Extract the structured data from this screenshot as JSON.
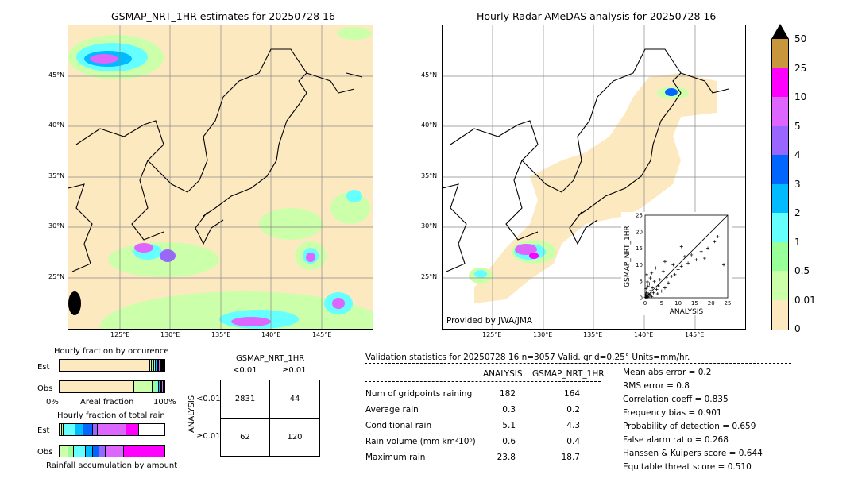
{
  "left_map": {
    "title": "GSMAP_NRT_1HR estimates for 20250728 16",
    "lat_labels": [
      "45°N",
      "40°N",
      "35°N",
      "30°N",
      "25°N"
    ],
    "lon_labels": [
      "125°E",
      "130°E",
      "135°E",
      "140°E",
      "145°E"
    ]
  },
  "right_map": {
    "title": "Hourly Radar-AMeDAS analysis for 20250728 16",
    "lat_labels": [
      "45°N",
      "40°N",
      "35°N",
      "30°N",
      "25°N"
    ],
    "lon_labels": [
      "125°E",
      "130°E",
      "135°E",
      "140°E",
      "145°E"
    ],
    "credit": "Provided by JWA/JMA"
  },
  "colorbar": {
    "labels": [
      "50",
      "25",
      "10",
      "5",
      "4",
      "3",
      "2",
      "1",
      "0.5",
      "0.01",
      "0"
    ],
    "colors": [
      "#c8963c",
      "#ff00ff",
      "#dd66ff",
      "#9966ff",
      "#0066ff",
      "#00bbff",
      "#66ffff",
      "#99ff99",
      "#ccffaa",
      "#fde9c0"
    ],
    "arrow_color": "#000000"
  },
  "chart_data": [
    {
      "type": "scatter",
      "title": "",
      "xlabel": "ANALYSIS",
      "ylabel": "GSMAP_NRT_1HR",
      "xlim": [
        0,
        25
      ],
      "ylim": [
        0,
        25
      ],
      "ticks": [
        "0",
        "5",
        "10",
        "15",
        "20",
        "25"
      ],
      "points": [
        [
          0.1,
          0.2
        ],
        [
          0.3,
          0.1
        ],
        [
          0.5,
          0.6
        ],
        [
          0.8,
          0.3
        ],
        [
          1.0,
          1.2
        ],
        [
          1.2,
          0.5
        ],
        [
          0.2,
          0.9
        ],
        [
          0.4,
          1.5
        ],
        [
          1.5,
          1.0
        ],
        [
          0.6,
          0.2
        ],
        [
          2.0,
          0.4
        ],
        [
          1.8,
          2.2
        ],
        [
          0.3,
          2.8
        ],
        [
          2.5,
          1.5
        ],
        [
          3.0,
          0.8
        ],
        [
          0.9,
          3.5
        ],
        [
          1.3,
          4.2
        ],
        [
          2.2,
          3.0
        ],
        [
          3.5,
          2.5
        ],
        [
          0.7,
          4.8
        ],
        [
          4.0,
          3.6
        ],
        [
          2.8,
          5.0
        ],
        [
          1.6,
          6.0
        ],
        [
          3.8,
          1.2
        ],
        [
          5.0,
          2.0
        ],
        [
          4.5,
          5.5
        ],
        [
          6.0,
          3.0
        ],
        [
          0.5,
          7.0
        ],
        [
          2.0,
          7.5
        ],
        [
          6.5,
          6.2
        ],
        [
          7.0,
          4.5
        ],
        [
          5.5,
          8.0
        ],
        [
          8.0,
          6.5
        ],
        [
          3.2,
          9.0
        ],
        [
          9.0,
          7.0
        ],
        [
          8.5,
          10.0
        ],
        [
          10.0,
          8.5
        ],
        [
          6.0,
          11.0
        ],
        [
          11.0,
          9.5
        ],
        [
          12.0,
          12.5
        ],
        [
          13.0,
          10.5
        ],
        [
          14.0,
          13.0
        ],
        [
          15.5,
          11.5
        ],
        [
          11.0,
          15.5
        ],
        [
          17.0,
          14.0
        ],
        [
          18.0,
          12.0
        ],
        [
          19.0,
          15.0
        ],
        [
          21.0,
          17.0
        ],
        [
          22.0,
          18.5
        ],
        [
          23.8,
          10.0
        ]
      ]
    },
    {
      "type": "bar",
      "title": "Hourly fraction by occurence",
      "categories": [
        "Est",
        "Obs"
      ],
      "xlabel": "Areal fraction",
      "x_ticks": [
        "0%",
        "100%"
      ],
      "series": [
        {
          "color": "#fde9c0",
          "values": [
            0.86,
            0.71
          ]
        },
        {
          "color": "#ccffaa",
          "values": [
            0.02,
            0.18
          ]
        },
        {
          "color": "#99ff99",
          "values": [
            0.02,
            0.04
          ]
        },
        {
          "color": "#66ffff",
          "values": [
            0.02,
            0.02
          ]
        },
        {
          "color": "#00bbff",
          "values": [
            0.01,
            0.01
          ]
        },
        {
          "color": "#0066ff",
          "values": [
            0.01,
            0.01
          ]
        },
        {
          "color": "#9966ff",
          "values": [
            0.01,
            0.01
          ]
        },
        {
          "color": "#dd66ff",
          "values": [
            0.01,
            0.01
          ]
        },
        {
          "color": "#ff00ff",
          "values": [
            0.01,
            0.01
          ]
        },
        {
          "color": "#000000",
          "values": [
            0.02,
            0.0
          ]
        }
      ]
    },
    {
      "type": "bar",
      "title": "Hourly fraction of total rain",
      "categories": [
        "Est",
        "Obs"
      ],
      "xlabel": "Rainfall accumulation by amount",
      "series": [
        {
          "color": "#ccffaa",
          "values": [
            0.02,
            0.08
          ]
        },
        {
          "color": "#99ff99",
          "values": [
            0.02,
            0.06
          ]
        },
        {
          "color": "#66ffff",
          "values": [
            0.11,
            0.11
          ]
        },
        {
          "color": "#00bbff",
          "values": [
            0.08,
            0.07
          ]
        },
        {
          "color": "#0066ff",
          "values": [
            0.09,
            0.06
          ]
        },
        {
          "color": "#9966ff",
          "values": [
            0.04,
            0.06
          ]
        },
        {
          "color": "#dd66ff",
          "values": [
            0.28,
            0.17
          ]
        },
        {
          "color": "#ff00ff",
          "values": [
            0.12,
            0.39
          ]
        }
      ]
    },
    {
      "type": "table",
      "title": "GSMAP_NRT_1HR",
      "col_headers": [
        "<0.01",
        "≥0.01"
      ],
      "row_headers": [
        "<0.01",
        "≥0.01"
      ],
      "side_label": "ANALYSIS",
      "cells": [
        [
          "2831",
          "44"
        ],
        [
          "62",
          "120"
        ]
      ]
    }
  ],
  "validation": {
    "header": "Validation statistics for 20250728 16  n=3057 Valid. grid=0.25° Units=mm/hr.",
    "col_analysis": "ANALYSIS",
    "col_gsmap": "GSMAP_NRT_1HR",
    "rows": [
      {
        "label": "Num of gridpoints raining",
        "analysis": "182",
        "gsmap": "164"
      },
      {
        "label": "Average rain",
        "analysis": "0.3",
        "gsmap": "0.2"
      },
      {
        "label": "Conditional rain",
        "analysis": "5.1",
        "gsmap": "4.3"
      },
      {
        "label": "Rain volume (mm km²10⁶)",
        "analysis": "0.6",
        "gsmap": "0.4"
      },
      {
        "label": "Maximum rain",
        "analysis": "23.8",
        "gsmap": "18.7"
      }
    ],
    "scores": [
      "Mean abs error =    0.2",
      "RMS error =    0.8",
      "Correlation coeff =  0.835",
      "Frequency bias =  0.901",
      "Probability of detection =  0.659",
      "False alarm ratio =  0.268",
      "Hanssen & Kuipers score =  0.644",
      "Equitable threat score =  0.510"
    ]
  }
}
